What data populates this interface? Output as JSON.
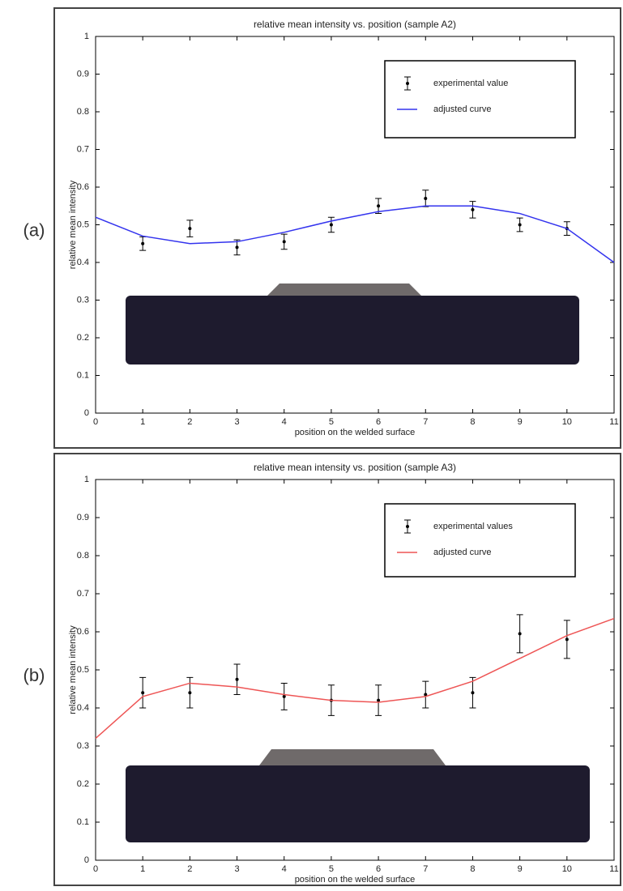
{
  "chart_data": [
    {
      "type": "line",
      "panel_label": "(a)",
      "title": "relative mean intensity vs. position (sample A2)",
      "xlabel": "position on the welded surface",
      "ylabel": "relative mean intensity",
      "xlim": [
        0,
        11
      ],
      "xticks": [
        0,
        1,
        2,
        3,
        4,
        5,
        6,
        7,
        8,
        9,
        10,
        11
      ],
      "ylim": [
        0,
        1
      ],
      "yticks": [
        0,
        0.1,
        0.2,
        0.3,
        0.4,
        0.5,
        0.6,
        0.7,
        0.8,
        0.9,
        1
      ],
      "legend": "upper right",
      "series": [
        {
          "name": "experimental value",
          "color": "#000000",
          "x": [
            1,
            2,
            3,
            4,
            5,
            6,
            7,
            8,
            9,
            10
          ],
          "values": [
            0.45,
            0.49,
            0.44,
            0.455,
            0.5,
            0.55,
            0.57,
            0.54,
            0.5,
            0.49
          ],
          "errors": [
            0.018,
            0.022,
            0.02,
            0.02,
            0.02,
            0.02,
            0.022,
            0.022,
            0.018,
            0.018
          ]
        },
        {
          "name": "adjusted curve",
          "color": "#3333ee",
          "x": [
            0,
            1,
            2,
            3,
            4,
            5,
            6,
            7,
            8,
            9,
            10,
            11
          ],
          "values": [
            0.52,
            0.47,
            0.45,
            0.455,
            0.48,
            0.51,
            0.535,
            0.55,
            0.55,
            0.53,
            0.49,
            0.4
          ]
        }
      ]
    },
    {
      "type": "line",
      "panel_label": "(b)",
      "title": "relative mean intensity vs. position (sample A3)",
      "xlabel": "position on the welded surface",
      "ylabel": "relative mean intensity",
      "xlim": [
        0,
        11
      ],
      "xticks": [
        0,
        1,
        2,
        3,
        4,
        5,
        6,
        7,
        8,
        9,
        10,
        11
      ],
      "ylim": [
        0,
        1
      ],
      "yticks": [
        0,
        0.1,
        0.2,
        0.3,
        0.4,
        0.5,
        0.6,
        0.7,
        0.8,
        0.9,
        1
      ],
      "legend": "upper right",
      "series": [
        {
          "name": "experimental values",
          "color": "#000000",
          "x": [
            1,
            2,
            3,
            4,
            5,
            6,
            7,
            8,
            9,
            10
          ],
          "values": [
            0.44,
            0.44,
            0.475,
            0.43,
            0.42,
            0.42,
            0.435,
            0.44,
            0.595,
            0.58
          ],
          "errors": [
            0.04,
            0.04,
            0.04,
            0.035,
            0.04,
            0.04,
            0.035,
            0.04,
            0.05,
            0.05
          ]
        },
        {
          "name": "adjusted curve",
          "color": "#ee5555",
          "x": [
            0,
            1,
            2,
            3,
            4,
            5,
            6,
            7,
            8,
            9,
            10,
            11
          ],
          "values": [
            0.32,
            0.43,
            0.465,
            0.455,
            0.435,
            0.42,
            0.415,
            0.43,
            0.47,
            0.53,
            0.59,
            0.635
          ]
        }
      ]
    }
  ]
}
